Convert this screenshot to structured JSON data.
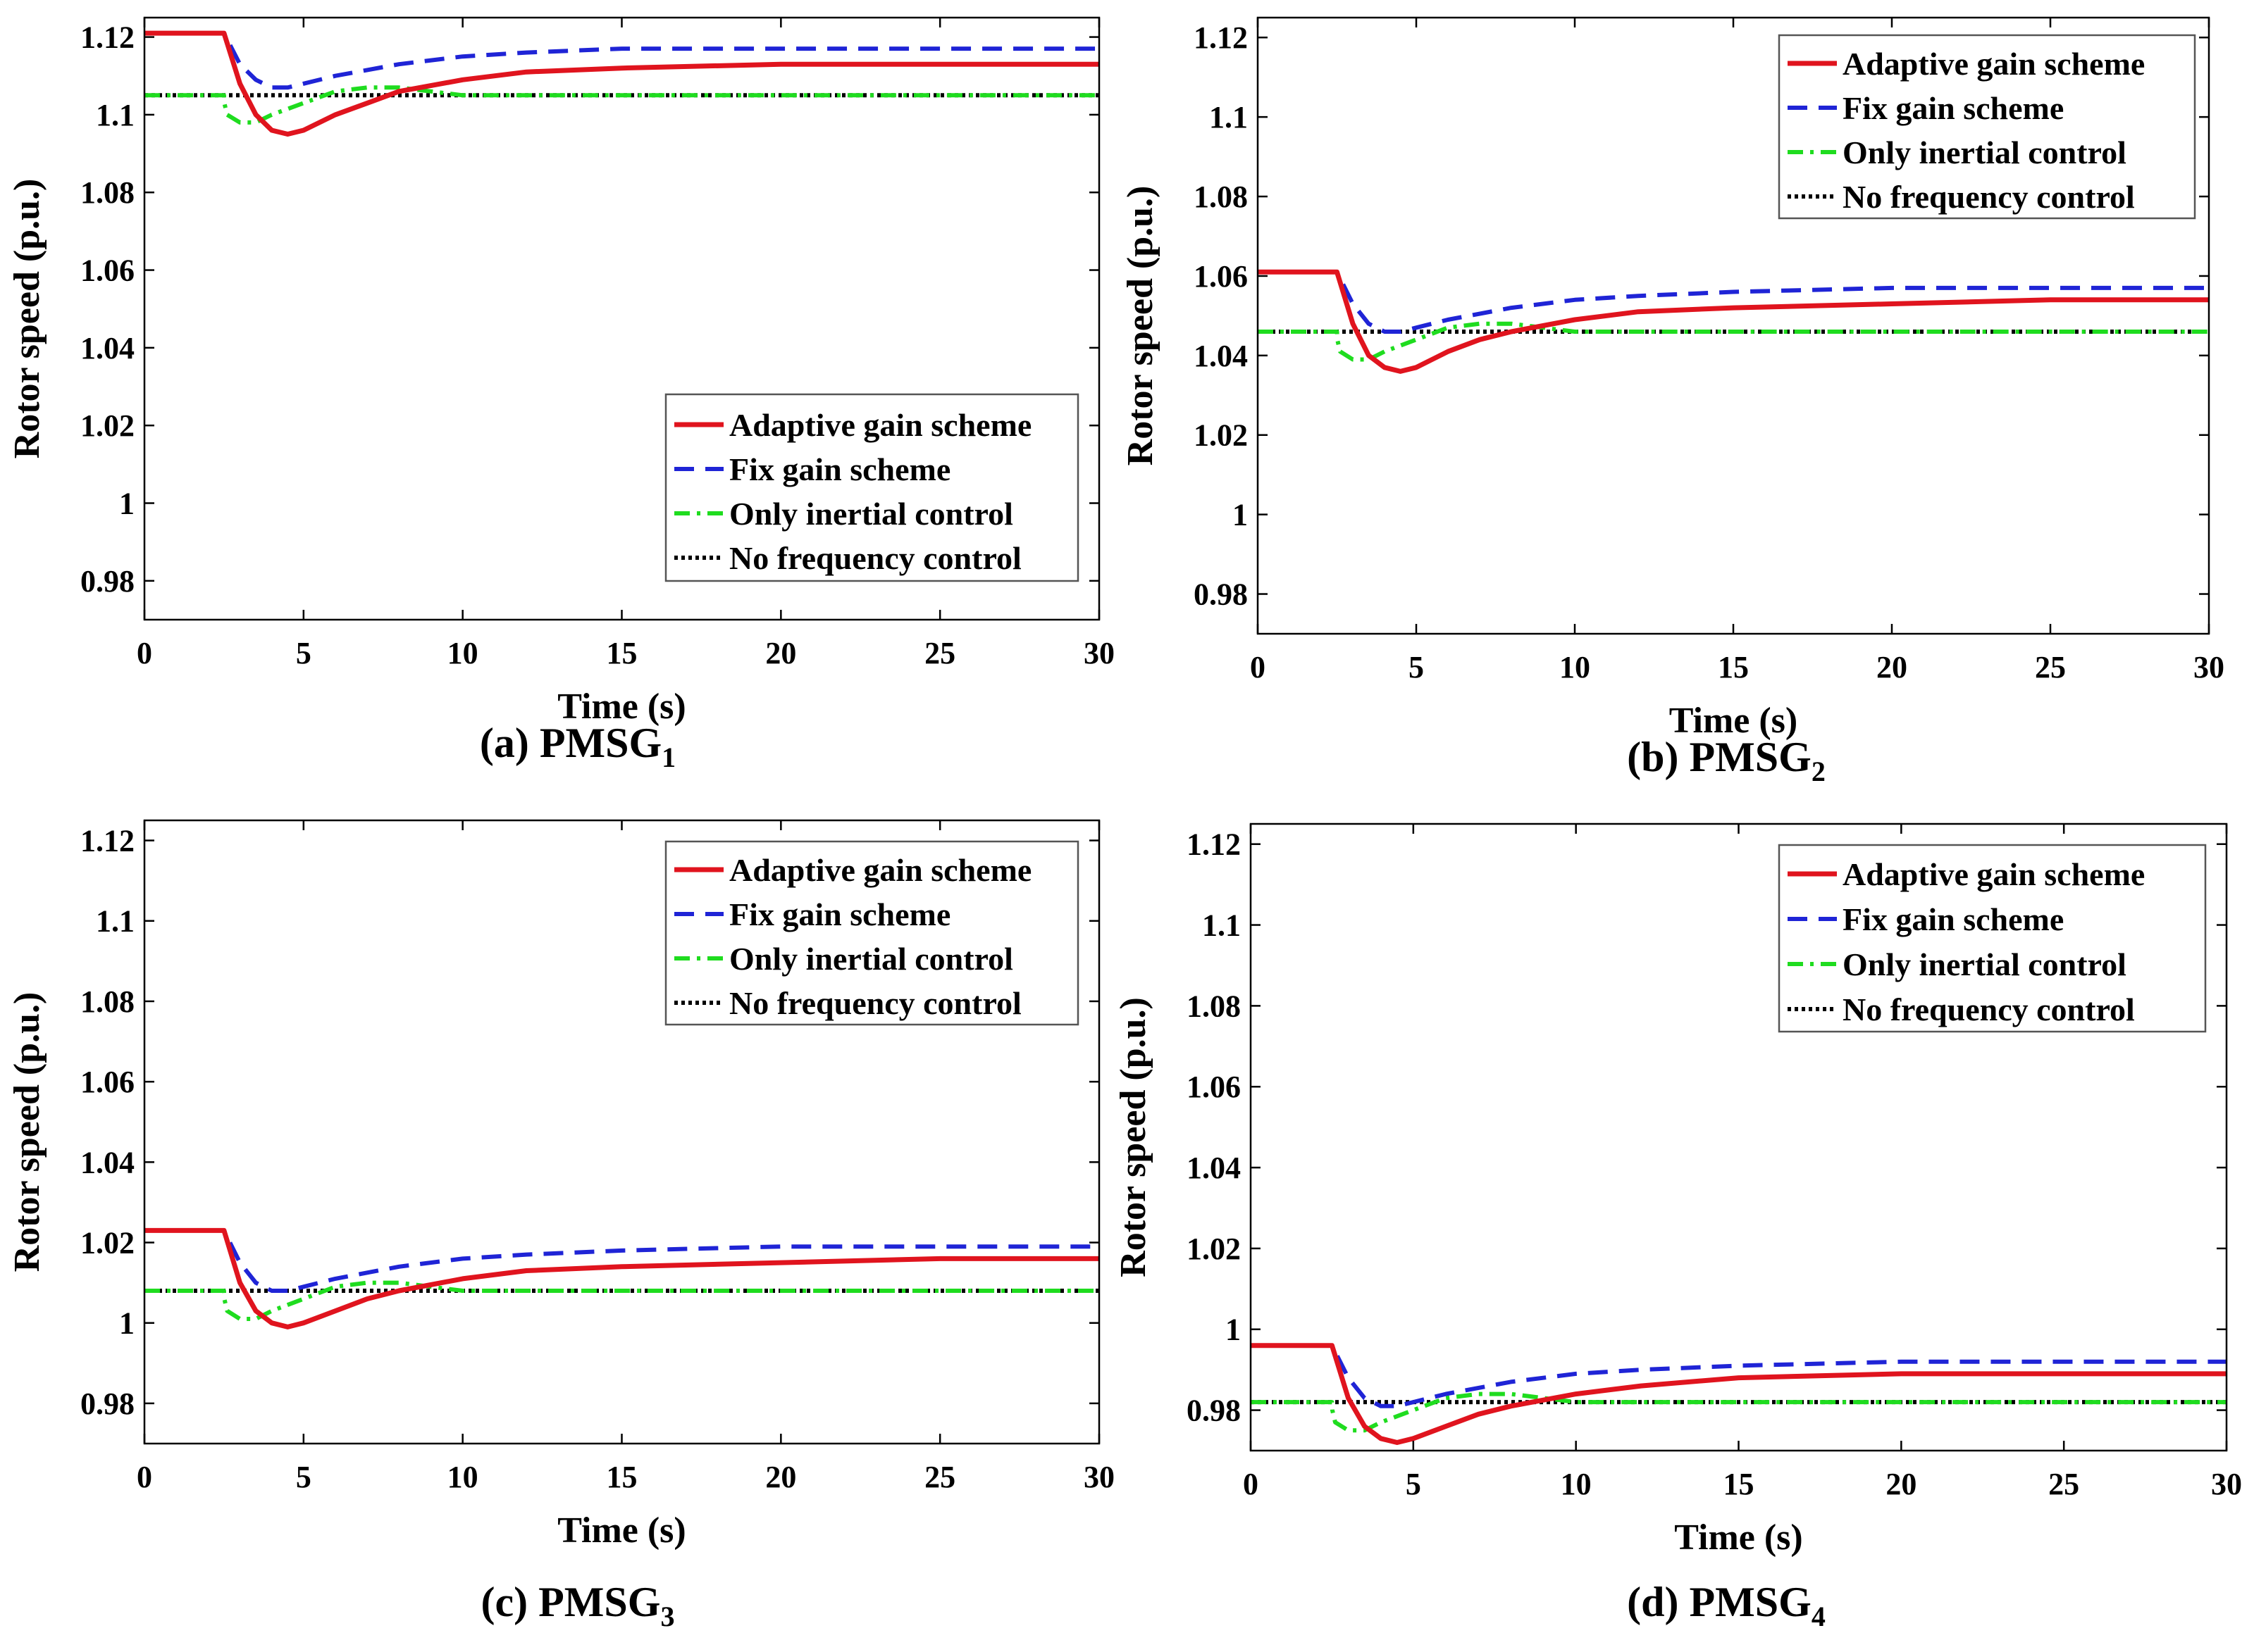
{
  "figure": {
    "legend_labels": [
      "Adaptive gain scheme",
      "Fix gain scheme",
      "Only inertial control",
      "No frequency control"
    ],
    "series_colors": [
      "#e0141e",
      "#1f24d6",
      "#1fdc1f",
      "#000000"
    ]
  },
  "chart_data": [
    {
      "type": "line",
      "caption": "(a) PMSG",
      "caption_sub": "1",
      "xlabel": "Time (s)",
      "ylabel": "Rotor speed (p.u.)",
      "xlim": [
        0,
        30
      ],
      "ylim": [
        0.97,
        1.125
      ],
      "xticks": [
        0,
        5,
        10,
        15,
        20,
        25,
        30
      ],
      "yticks": [
        0.98,
        1,
        1.02,
        1.04,
        1.06,
        1.08,
        1.1,
        1.12
      ],
      "ytick_labels": [
        "0.98",
        "1",
        "1.02",
        "1.04",
        "1.06",
        "1.08",
        "1.1",
        "1.12"
      ],
      "legend_position": "lower-right",
      "series": [
        {
          "name": "Adaptive gain scheme",
          "style": "solid",
          "x": [
            0,
            2.5,
            3,
            3.5,
            4,
            4.5,
            5,
            6,
            7,
            8,
            10,
            12,
            15,
            20,
            25,
            30
          ],
          "values": [
            1.121,
            1.121,
            1.108,
            1.1,
            1.096,
            1.095,
            1.096,
            1.1,
            1.103,
            1.106,
            1.109,
            1.111,
            1.112,
            1.113,
            1.113,
            1.113
          ]
        },
        {
          "name": "Fix gain scheme",
          "style": "dash",
          "x": [
            0,
            2.5,
            3,
            3.5,
            4,
            4.5,
            5,
            6,
            8,
            10,
            12,
            15,
            20,
            25,
            30
          ],
          "values": [
            1.121,
            1.121,
            1.113,
            1.109,
            1.107,
            1.107,
            1.108,
            1.11,
            1.113,
            1.115,
            1.116,
            1.117,
            1.117,
            1.117,
            1.117
          ]
        },
        {
          "name": "Only inertial control",
          "style": "dashdot",
          "x": [
            0,
            2.5,
            2.51,
            2.6,
            3,
            3.5,
            4,
            5,
            6,
            7,
            8,
            9,
            10,
            15,
            30
          ],
          "values": [
            1.105,
            1.105,
            1.103,
            1.1,
            1.098,
            1.098,
            1.1,
            1.103,
            1.106,
            1.107,
            1.107,
            1.106,
            1.105,
            1.105,
            1.105
          ]
        },
        {
          "name": "No frequency control",
          "style": "dot",
          "x": [
            0,
            30
          ],
          "values": [
            1.105,
            1.105
          ]
        }
      ]
    },
    {
      "type": "line",
      "caption": "(b) PMSG",
      "caption_sub": "2",
      "xlabel": "Time (s)",
      "ylabel": "Rotor speed (p.u.)",
      "xlim": [
        0,
        30
      ],
      "ylim": [
        0.97,
        1.125
      ],
      "xticks": [
        0,
        5,
        10,
        15,
        20,
        25,
        30
      ],
      "yticks": [
        0.98,
        1,
        1.02,
        1.04,
        1.06,
        1.08,
        1.1,
        1.12
      ],
      "ytick_labels": [
        "0.98",
        "1",
        "1.02",
        "1.04",
        "1.06",
        "1.08",
        "1.1",
        "1.12"
      ],
      "legend_position": "top-right",
      "series": [
        {
          "name": "Adaptive gain scheme",
          "style": "solid",
          "x": [
            0,
            2.5,
            3,
            3.5,
            4,
            4.5,
            5,
            6,
            7,
            8,
            10,
            12,
            15,
            20,
            25,
            30
          ],
          "values": [
            1.061,
            1.061,
            1.048,
            1.04,
            1.037,
            1.036,
            1.037,
            1.041,
            1.044,
            1.046,
            1.049,
            1.051,
            1.052,
            1.053,
            1.054,
            1.054
          ]
        },
        {
          "name": "Fix gain scheme",
          "style": "dash",
          "x": [
            0,
            2.5,
            3,
            3.5,
            4,
            4.5,
            5,
            6,
            8,
            10,
            12,
            15,
            20,
            25,
            30
          ],
          "values": [
            1.061,
            1.061,
            1.053,
            1.048,
            1.046,
            1.046,
            1.047,
            1.049,
            1.052,
            1.054,
            1.055,
            1.056,
            1.057,
            1.057,
            1.057
          ]
        },
        {
          "name": "Only inertial control",
          "style": "dashdot",
          "x": [
            0,
            2.5,
            2.51,
            2.6,
            3,
            3.5,
            4,
            5,
            6,
            7,
            8,
            9,
            10,
            15,
            30
          ],
          "values": [
            1.046,
            1.046,
            1.044,
            1.041,
            1.039,
            1.039,
            1.041,
            1.044,
            1.047,
            1.048,
            1.048,
            1.047,
            1.046,
            1.046,
            1.046
          ]
        },
        {
          "name": "No frequency control",
          "style": "dot",
          "x": [
            0,
            30
          ],
          "values": [
            1.046,
            1.046
          ]
        }
      ]
    },
    {
      "type": "line",
      "caption": "(c) PMSG",
      "caption_sub": "3",
      "xlabel": "Time (s)",
      "ylabel": "Rotor speed (p.u.)",
      "xlim": [
        0,
        30
      ],
      "ylim": [
        0.97,
        1.125
      ],
      "xticks": [
        0,
        5,
        10,
        15,
        20,
        25,
        30
      ],
      "yticks": [
        0.98,
        1,
        1.02,
        1.04,
        1.06,
        1.08,
        1.1,
        1.12
      ],
      "ytick_labels": [
        "0.98",
        "1",
        "1.02",
        "1.04",
        "1.06",
        "1.08",
        "1.1",
        "1.12"
      ],
      "legend_position": "top-right",
      "series": [
        {
          "name": "Adaptive gain scheme",
          "style": "solid",
          "x": [
            0,
            2.5,
            3,
            3.5,
            4,
            4.5,
            5,
            6,
            7,
            8,
            10,
            12,
            15,
            20,
            25,
            30
          ],
          "values": [
            1.023,
            1.023,
            1.01,
            1.003,
            1.0,
            0.999,
            1.0,
            1.003,
            1.006,
            1.008,
            1.011,
            1.013,
            1.014,
            1.015,
            1.016,
            1.016
          ]
        },
        {
          "name": "Fix gain scheme",
          "style": "dash",
          "x": [
            0,
            2.5,
            3,
            3.5,
            4,
            4.5,
            5,
            6,
            8,
            10,
            12,
            15,
            20,
            25,
            30
          ],
          "values": [
            1.023,
            1.023,
            1.015,
            1.01,
            1.008,
            1.008,
            1.009,
            1.011,
            1.014,
            1.016,
            1.017,
            1.018,
            1.019,
            1.019,
            1.019
          ]
        },
        {
          "name": "Only inertial control",
          "style": "dashdot",
          "x": [
            0,
            2.5,
            2.51,
            2.6,
            3,
            3.5,
            4,
            5,
            6,
            7,
            8,
            9,
            10,
            15,
            30
          ],
          "values": [
            1.008,
            1.008,
            1.006,
            1.003,
            1.001,
            1.001,
            1.003,
            1.006,
            1.009,
            1.01,
            1.01,
            1.009,
            1.008,
            1.008,
            1.008
          ]
        },
        {
          "name": "No frequency control",
          "style": "dot",
          "x": [
            0,
            30
          ],
          "values": [
            1.008,
            1.008
          ]
        }
      ]
    },
    {
      "type": "line",
      "caption": "(d) PMSG",
      "caption_sub": "4",
      "xlabel": "Time (s)",
      "ylabel": "Rotor speed (p.u.)",
      "xlim": [
        0,
        30
      ],
      "ylim": [
        0.97,
        1.125
      ],
      "xticks": [
        0,
        5,
        10,
        15,
        20,
        25,
        30
      ],
      "yticks": [
        0.98,
        1,
        1.02,
        1.04,
        1.06,
        1.08,
        1.1,
        1.12
      ],
      "ytick_labels": [
        "0.98",
        "1",
        "1.02",
        "1.04",
        "1.06",
        "1.08",
        "1.1",
        "1.12"
      ],
      "legend_position": "top-right",
      "series": [
        {
          "name": "Adaptive gain scheme",
          "style": "solid",
          "x": [
            0,
            2.5,
            3,
            3.5,
            4,
            4.5,
            5,
            6,
            7,
            8,
            10,
            12,
            15,
            20,
            25,
            30
          ],
          "values": [
            0.996,
            0.996,
            0.983,
            0.976,
            0.973,
            0.972,
            0.973,
            0.976,
            0.979,
            0.981,
            0.984,
            0.986,
            0.988,
            0.989,
            0.989,
            0.989
          ]
        },
        {
          "name": "Fix gain scheme",
          "style": "dash",
          "x": [
            0,
            2.5,
            3,
            3.5,
            4,
            4.5,
            5,
            6,
            8,
            10,
            12,
            15,
            20,
            25,
            30
          ],
          "values": [
            0.996,
            0.996,
            0.988,
            0.983,
            0.981,
            0.981,
            0.982,
            0.984,
            0.987,
            0.989,
            0.99,
            0.991,
            0.992,
            0.992,
            0.992
          ]
        },
        {
          "name": "Only inertial control",
          "style": "dashdot",
          "x": [
            0,
            2.5,
            2.51,
            2.6,
            3,
            3.5,
            4,
            5,
            6,
            7,
            8,
            9,
            10,
            15,
            30
          ],
          "values": [
            0.982,
            0.982,
            0.98,
            0.977,
            0.975,
            0.975,
            0.977,
            0.98,
            0.983,
            0.984,
            0.984,
            0.983,
            0.982,
            0.982,
            0.982
          ]
        },
        {
          "name": "No frequency control",
          "style": "dot",
          "x": [
            0,
            30
          ],
          "values": [
            0.982,
            0.982
          ]
        }
      ]
    }
  ]
}
